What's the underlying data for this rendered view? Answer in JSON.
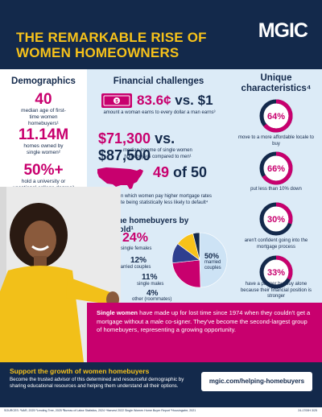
{
  "header": {
    "title": "THE REMARKABLE RISE OF WOMEN HOMEOWNERS",
    "logo": "MGIC"
  },
  "demographics": {
    "title": "Demographics",
    "stats": [
      {
        "value": "40",
        "label": "median age of first-time women homebuyers¹"
      },
      {
        "value": "11.14M",
        "label": "homes owned by single women²"
      },
      {
        "value": "50%+",
        "label": "hold a university or vocational college degree³"
      }
    ]
  },
  "financial": {
    "title": "Financial challenges",
    "earnings": {
      "value_a": "83.6¢",
      "vs": " vs. ",
      "value_b": "$1",
      "label": "amount a woman earns to every dollar a man earns³"
    },
    "income": {
      "value_a": "$71,300",
      "vs": " vs. ",
      "value_b": "$87,500",
      "label": "median income of single women homebuyers compared to men¹"
    },
    "states": {
      "value_a": "49",
      "of": " of ",
      "value_b": "50",
      "label": "states in which women pay higher mortgage rates despite being statistically less likely to default⁴"
    }
  },
  "unique": {
    "title": "Unique characteristics⁴",
    "items": [
      {
        "value": "64%",
        "fraction": 0.64,
        "label": "move to a more affordable locale to buy"
      },
      {
        "value": "66%",
        "fraction": 0.66,
        "label": "put less than 10% down"
      },
      {
        "value": "30%",
        "fraction": 0.3,
        "label": "aren't confident going into the mortgage process"
      },
      {
        "value": "33%",
        "fraction": 0.33,
        "label": "have a partner but buy alone because their financial position is stronger"
      }
    ]
  },
  "household": {
    "title": "First-time homebuyers by household¹",
    "items": [
      {
        "value": "24%",
        "label": "single females"
      },
      {
        "value": "12%",
        "label": "unmarried couples"
      },
      {
        "value": "11%",
        "label": "single males"
      },
      {
        "value": "4%",
        "label": "other (roommates)"
      },
      {
        "value": "50%",
        "label": "married couples"
      }
    ]
  },
  "chart_data": {
    "type": "pie",
    "categories": [
      "married couples",
      "single females",
      "unmarried couples",
      "single males",
      "other (roommates)"
    ],
    "values": [
      50,
      24,
      12,
      11,
      4
    ],
    "title": "First-time homebuyers by household",
    "colors": [
      "#cde3f5",
      "#c8006e",
      "#2e3f8f",
      "#f7c21a",
      "#13294b"
    ]
  },
  "band": {
    "bold": "Single women",
    "text": " have made up for lost time since 1974 when they couldn't get a mortgage without a male co-signer. They've become the second-largest group of homebuyers, representing a growing opportunity."
  },
  "footer": {
    "title": "Support the growth of women homebuyers",
    "body": "Become the trusted advisor of this determined and resourceful demographic by sharing educational resources and helping them understand all their options.",
    "cta": "mgic.com/helping-homebuyers"
  },
  "sources": "SOURCES: ¹NAR, 2025 ²Lending Tree, 2025 ³Bureau of Labor Statistics, 2024 ⁴Harvest 2022 Single Women Home Buyer Report ⁵Housingwire, 2021",
  "docid": "24-1700H 3/25",
  "colors": {
    "navy": "#13294b",
    "magenta": "#c8006e",
    "yellow": "#f7c21a",
    "light_blue": "#dcebf7"
  }
}
